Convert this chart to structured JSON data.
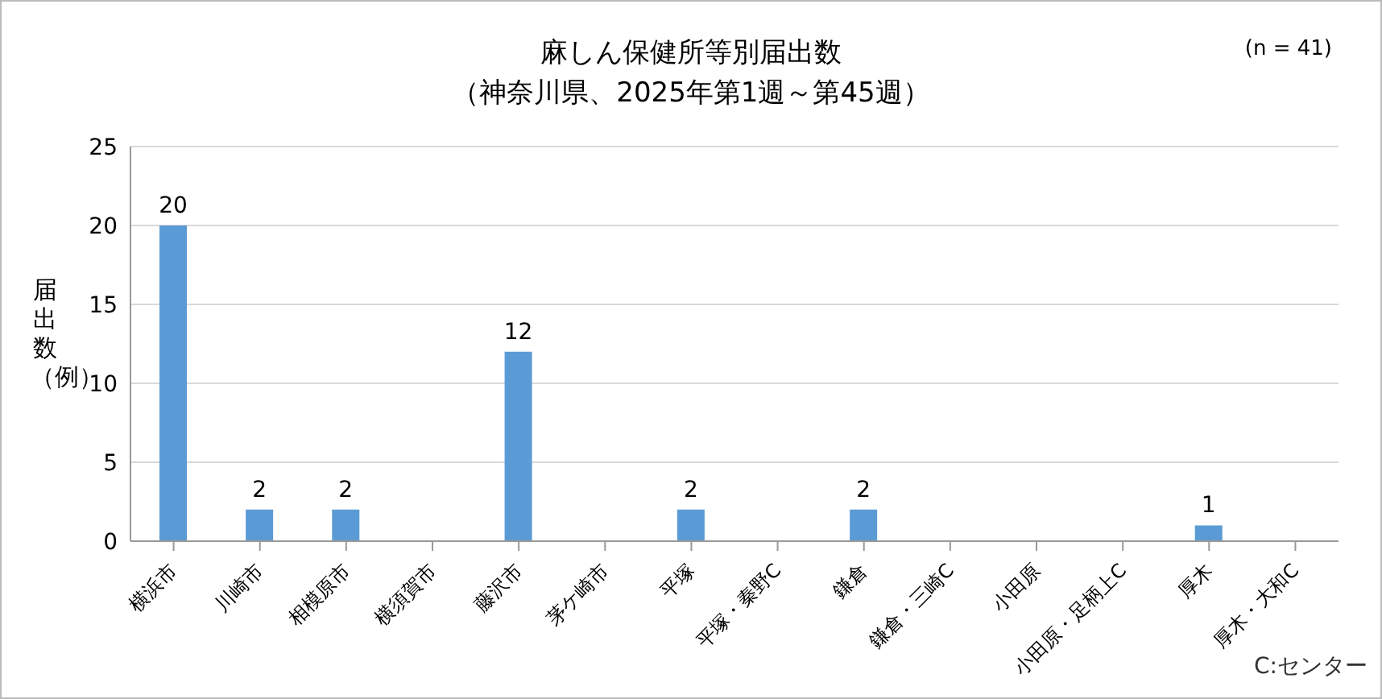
{
  "chart_data": {
    "type": "bar",
    "title": "麻しん保健所等別届出数",
    "subtitle": "（神奈川県、2025年第1週～第45週）",
    "ylabel": "届出数（例）",
    "categories": [
      "横浜市",
      "川崎市",
      "相模原市",
      "横須賀市",
      "藤沢市",
      "茅ケ崎市",
      "平塚",
      "平塚・秦野C",
      "鎌倉",
      "鎌倉・三崎C",
      "小田原",
      "小田原・足柄上C",
      "厚木",
      "厚木・大和C"
    ],
    "values": [
      20,
      2,
      2,
      0,
      12,
      0,
      2,
      0,
      2,
      0,
      0,
      0,
      1,
      0
    ],
    "value_labels": [
      "20",
      "2",
      "2",
      null,
      "12",
      null,
      "2",
      null,
      "2",
      null,
      null,
      null,
      "1",
      null
    ],
    "color": "#5b9bd5",
    "ylim": [
      0,
      25
    ],
    "yticks": [
      0,
      5,
      10,
      15,
      20,
      25
    ],
    "grid": "y",
    "annotations": [
      "(n = 41)",
      "C:センター"
    ]
  }
}
